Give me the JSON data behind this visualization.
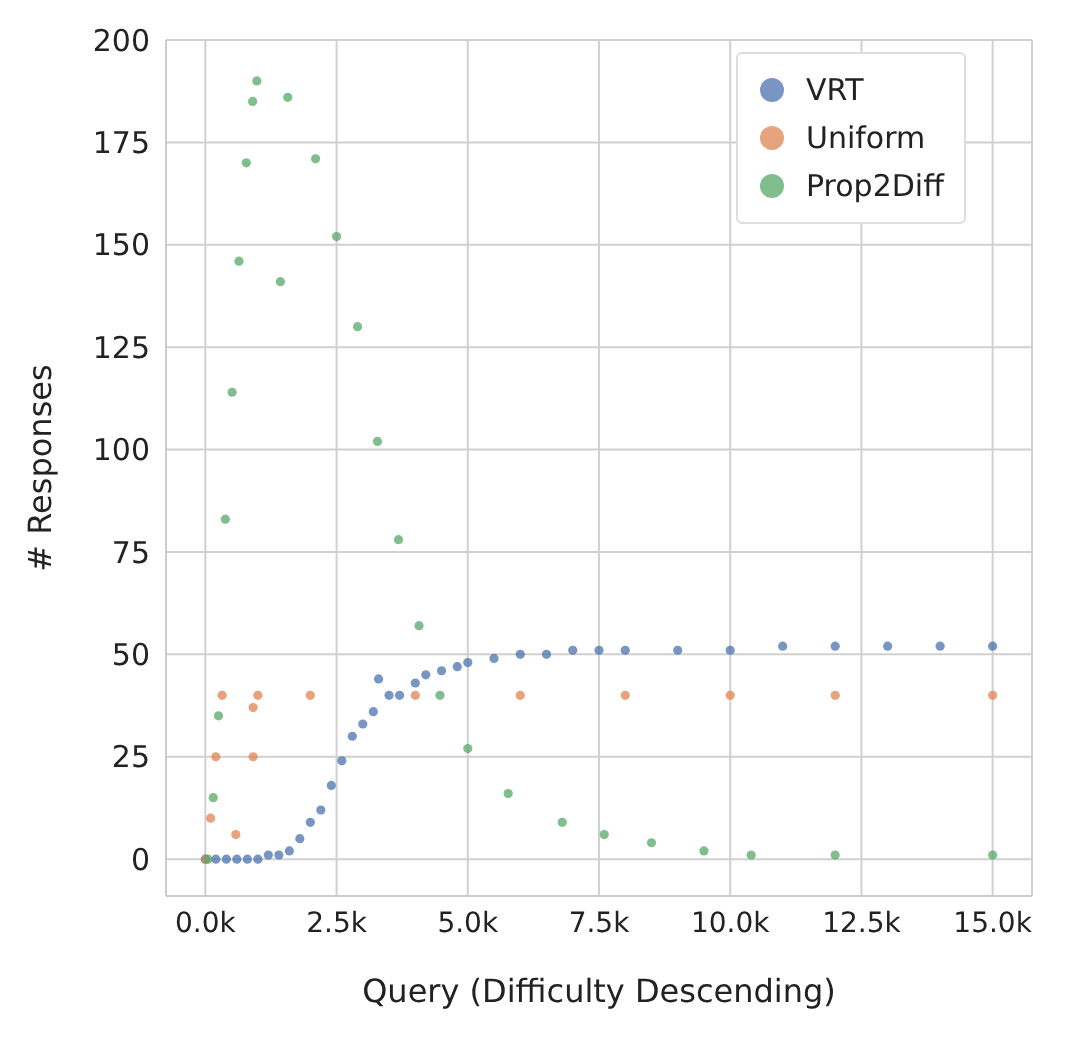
{
  "chart_data": {
    "type": "scatter",
    "xlabel": "Query (Difficulty Descending)",
    "ylabel": "# Responses",
    "xlim": [
      -750,
      15750
    ],
    "ylim": [
      -9,
      200
    ],
    "xticks": [
      {
        "value": 0,
        "label": "0.0k"
      },
      {
        "value": 2500,
        "label": "2.5k"
      },
      {
        "value": 5000,
        "label": "5.0k"
      },
      {
        "value": 7500,
        "label": "7.5k"
      },
      {
        "value": 10000,
        "label": "10.0k"
      },
      {
        "value": 12500,
        "label": "12.5k"
      },
      {
        "value": 15000,
        "label": "15.0k"
      }
    ],
    "yticks": [
      0,
      25,
      50,
      75,
      100,
      125,
      150,
      175,
      200
    ],
    "grid": true,
    "legend": "top right",
    "marker": "circle",
    "series": [
      {
        "name": "VRT",
        "color": "#4c72b0",
        "x": [
          0,
          200,
          400,
          600,
          800,
          1000,
          1200,
          1400,
          1600,
          1800,
          2000,
          2200,
          2400,
          2600,
          2800,
          3000,
          3200,
          3300,
          3500,
          3700,
          4000,
          4200,
          4500,
          4800,
          5000,
          5500,
          6000,
          6500,
          7000,
          7500,
          8000,
          9000,
          10000,
          11000,
          12000,
          13000,
          14000,
          15000
        ],
        "values": [
          0,
          0,
          0,
          0,
          0,
          0,
          1,
          1,
          2,
          5,
          9,
          12,
          18,
          24,
          30,
          33,
          36,
          44,
          40,
          40,
          43,
          45,
          46,
          47,
          48,
          49,
          50,
          50,
          51,
          51,
          51,
          51,
          51,
          52,
          52,
          52,
          52,
          52
        ]
      },
      {
        "name": "Uniform",
        "color": "#dd8452",
        "x": [
          0,
          100,
          200,
          320,
          580,
          910,
          910,
          1000,
          2000,
          4000,
          6000,
          8000,
          10000,
          12000,
          15000
        ],
        "values": [
          0,
          10,
          25,
          40,
          6,
          25,
          37,
          40,
          40,
          40,
          40,
          40,
          40,
          40,
          40
        ]
      },
      {
        "name": "Prop2Diff",
        "color": "#55a868",
        "x": [
          50,
          150,
          250,
          380,
          510,
          640,
          780,
          900,
          980,
          1430,
          1570,
          2100,
          2500,
          2900,
          3280,
          3680,
          4070,
          4470,
          5000,
          5770,
          6800,
          7600,
          8500,
          9500,
          10400,
          12000,
          15000
        ],
        "values": [
          0,
          15,
          35,
          83,
          114,
          146,
          170,
          185,
          190,
          141,
          186,
          171,
          152,
          130,
          102,
          78,
          57,
          40,
          27,
          16,
          9,
          6,
          4,
          2,
          1,
          1,
          1
        ]
      }
    ]
  }
}
